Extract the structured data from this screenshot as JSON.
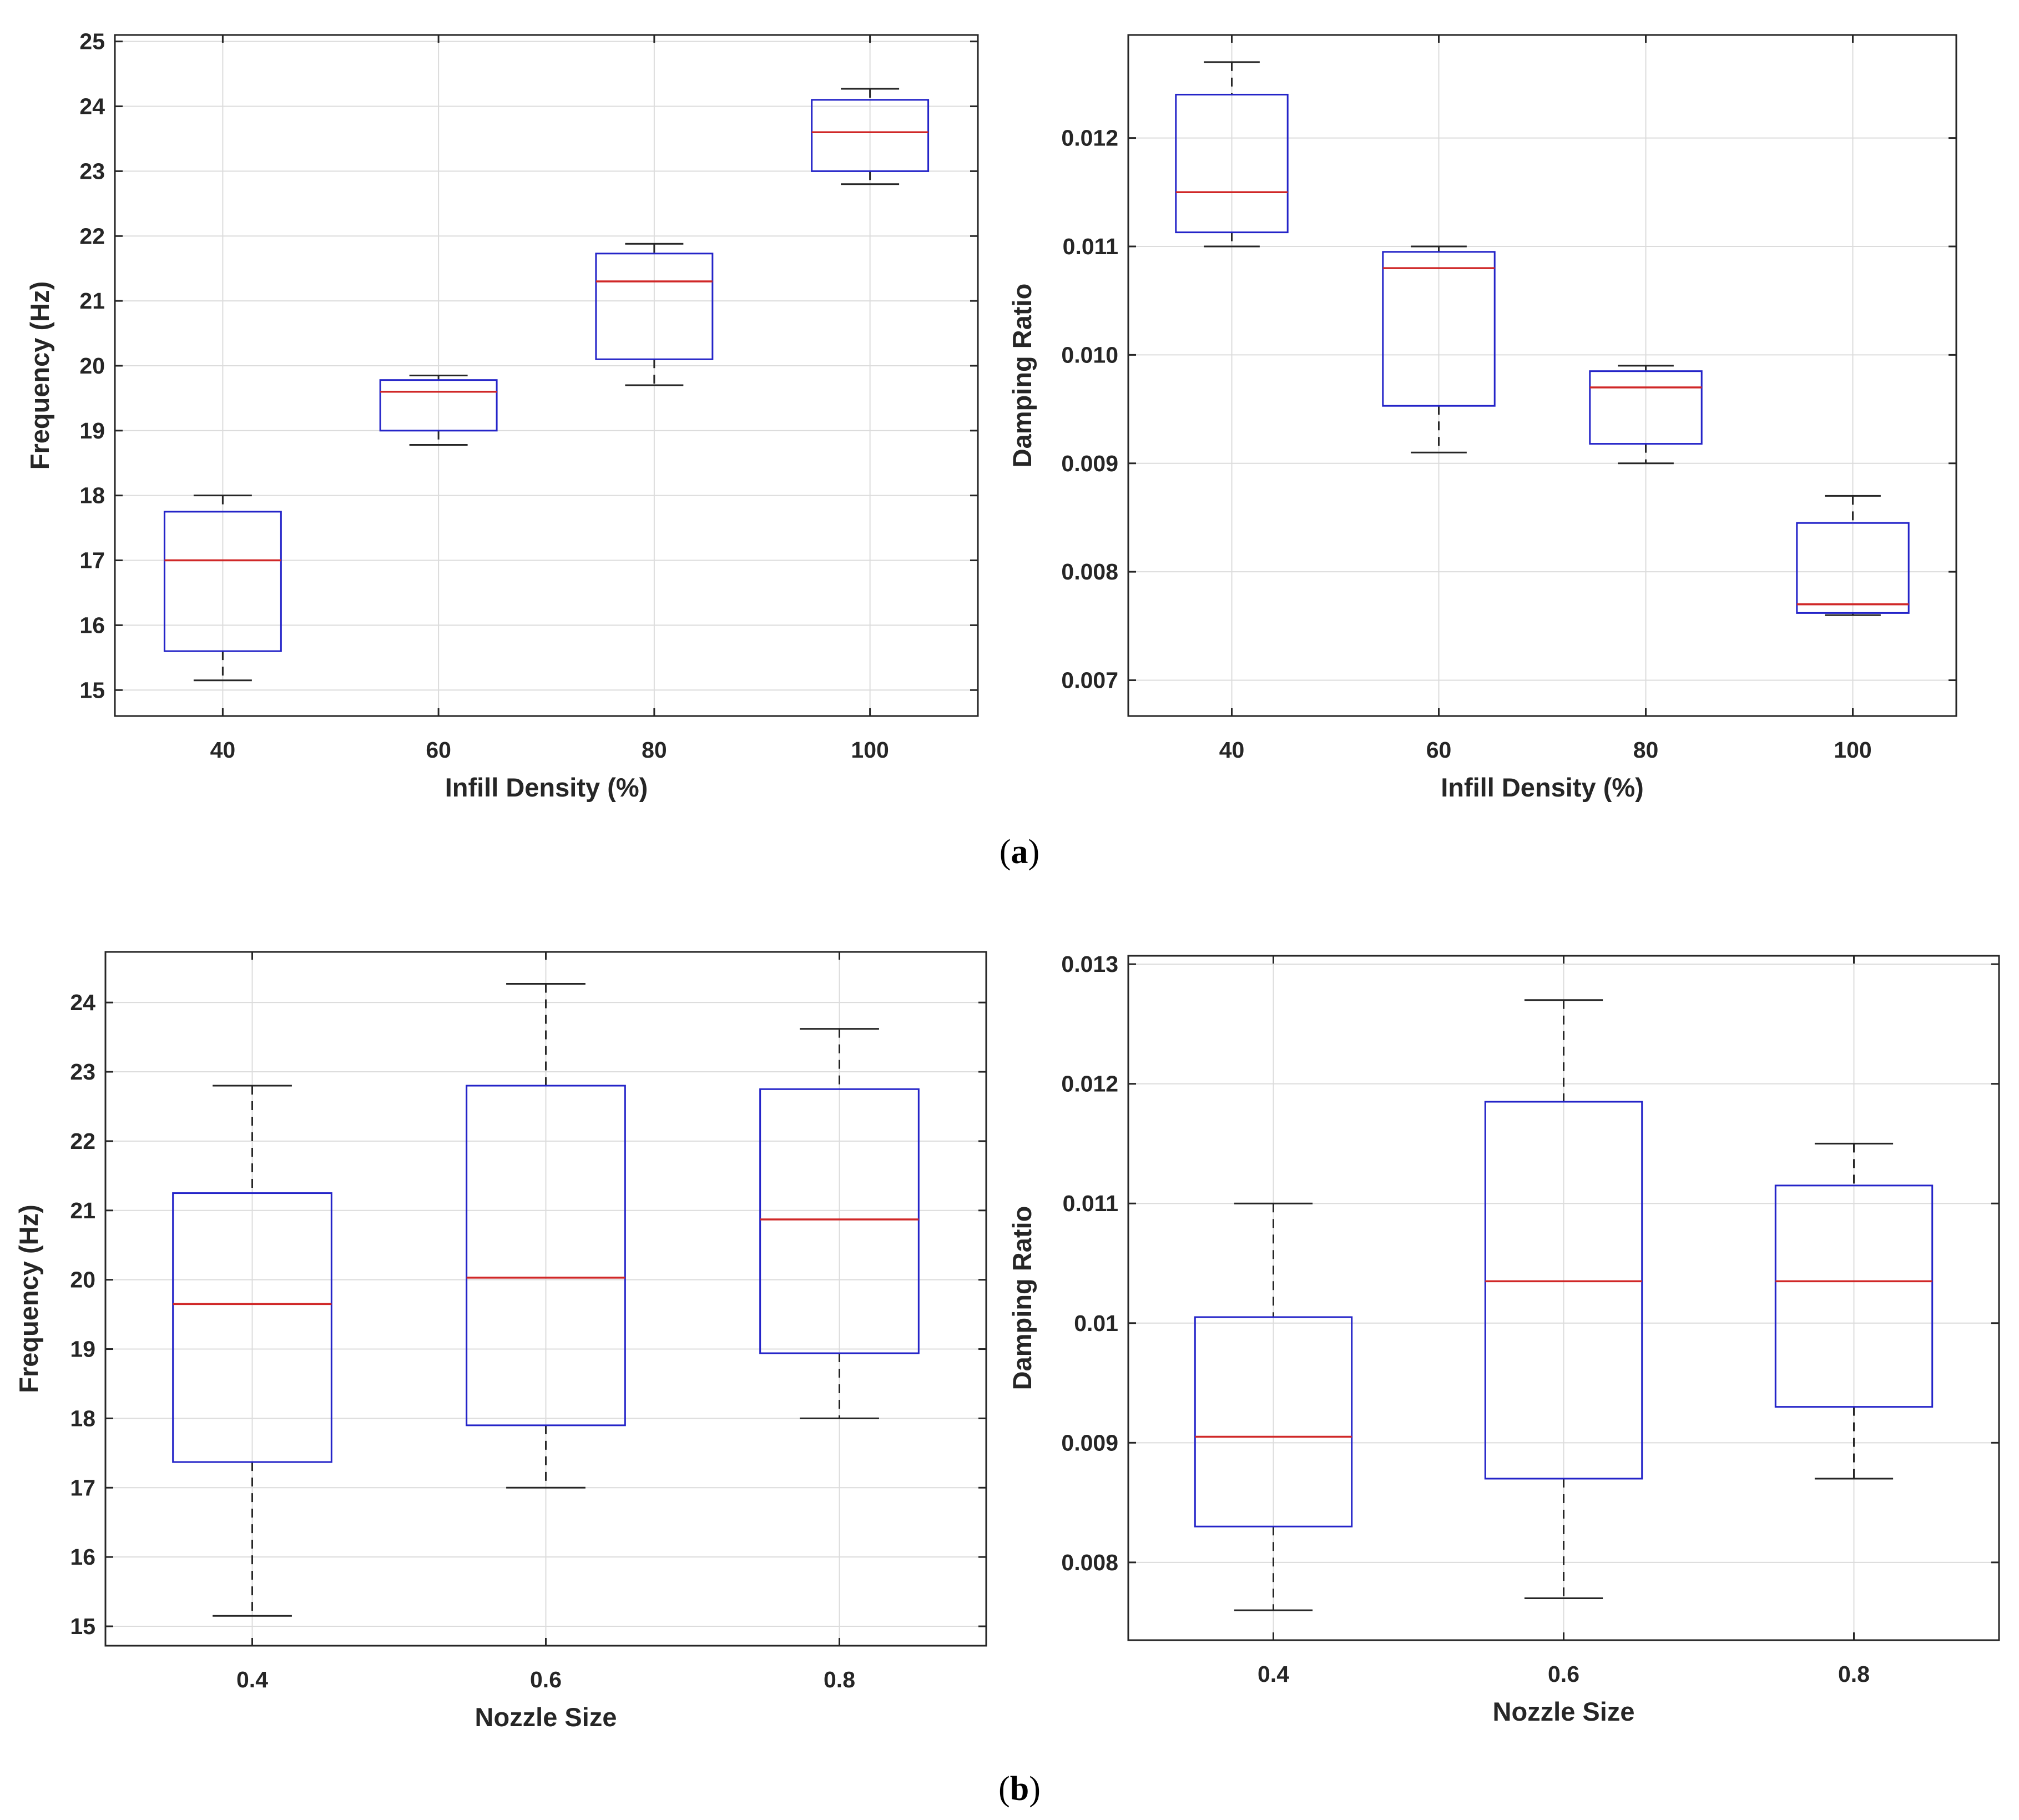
{
  "figure": {
    "panel_labels": {
      "a": "a",
      "b": "b"
    },
    "colors": {
      "box": "#2424c8",
      "median": "#d02828",
      "whisker": "#262626",
      "grid": "#dcdcdc",
      "axes": "#262626"
    }
  },
  "chart_data": [
    {
      "type": "box",
      "panel": "a",
      "title": "",
      "xlabel": "Infill Density (%)",
      "ylabel": "Frequency (Hz)",
      "categories": [
        "40",
        "60",
        "80",
        "100"
      ],
      "ylim": [
        14.6,
        25.1
      ],
      "yticks": [
        15,
        16,
        17,
        18,
        19,
        20,
        21,
        22,
        23,
        24,
        25
      ],
      "ytick_labels": [
        "15",
        "16",
        "17",
        "18",
        "19",
        "20",
        "21",
        "22",
        "23",
        "24",
        "25"
      ],
      "grid": true,
      "boxes": [
        {
          "min": 15.15,
          "q1": 15.6,
          "median": 17.0,
          "q3": 17.75,
          "max": 18.0
        },
        {
          "min": 18.78,
          "q1": 19.0,
          "median": 19.6,
          "q3": 19.78,
          "max": 19.85
        },
        {
          "min": 19.7,
          "q1": 20.1,
          "median": 21.3,
          "q3": 21.73,
          "max": 21.88
        },
        {
          "min": 22.8,
          "q1": 23.0,
          "median": 23.6,
          "q3": 24.1,
          "max": 24.27
        }
      ]
    },
    {
      "type": "box",
      "panel": "a",
      "title": "",
      "xlabel": "Infill Density (%)",
      "ylabel": "Damping Ratio",
      "categories": [
        "40",
        "60",
        "80",
        "100"
      ],
      "ylim": [
        0.00667,
        0.01295
      ],
      "yticks": [
        0.007,
        0.008,
        0.009,
        0.01,
        0.011,
        0.012
      ],
      "ytick_labels": [
        "0.007",
        "0.008",
        "0.009",
        "0.010",
        "0.011",
        "0.012"
      ],
      "grid": true,
      "boxes": [
        {
          "min": 0.011,
          "q1": 0.01113,
          "median": 0.0115,
          "q3": 0.0124,
          "max": 0.0127
        },
        {
          "min": 0.0091,
          "q1": 0.00953,
          "median": 0.0108,
          "q3": 0.01095,
          "max": 0.011
        },
        {
          "min": 0.009,
          "q1": 0.00918,
          "median": 0.0097,
          "q3": 0.00985,
          "max": 0.0099
        },
        {
          "min": 0.0076,
          "q1": 0.00762,
          "median": 0.0077,
          "q3": 0.00845,
          "max": 0.0087
        }
      ]
    },
    {
      "type": "box",
      "panel": "b",
      "title": "",
      "xlabel": "Nozzle Size",
      "ylabel": "Frequency (Hz)",
      "categories": [
        "0.4",
        "0.6",
        "0.8"
      ],
      "ylim": [
        14.72,
        24.73
      ],
      "yticks": [
        15,
        16,
        17,
        18,
        19,
        20,
        21,
        22,
        23,
        24
      ],
      "ytick_labels": [
        "15",
        "16",
        "17",
        "18",
        "19",
        "20",
        "21",
        "22",
        "23",
        "24"
      ],
      "grid": true,
      "boxes": [
        {
          "min": 15.15,
          "q1": 17.37,
          "median": 19.65,
          "q3": 21.25,
          "max": 22.8
        },
        {
          "min": 17.0,
          "q1": 17.9,
          "median": 20.03,
          "q3": 22.8,
          "max": 24.27
        },
        {
          "min": 18.0,
          "q1": 18.94,
          "median": 20.87,
          "q3": 22.75,
          "max": 23.62
        }
      ]
    },
    {
      "type": "box",
      "panel": "b",
      "title": "",
      "xlabel": "Nozzle Size",
      "ylabel": "Damping Ratio",
      "categories": [
        "0.4",
        "0.6",
        "0.8"
      ],
      "ylim": [
        0.00735,
        0.01307
      ],
      "yticks": [
        0.008,
        0.009,
        0.01,
        0.011,
        0.012,
        0.013
      ],
      "ytick_labels": [
        "0.008",
        "0.009",
        "0.01",
        "0.011",
        "0.012",
        "0.013"
      ],
      "grid": true,
      "boxes": [
        {
          "min": 0.0076,
          "q1": 0.0083,
          "median": 0.00905,
          "q3": 0.01005,
          "max": 0.011
        },
        {
          "min": 0.0077,
          "q1": 0.0087,
          "median": 0.01035,
          "q3": 0.01185,
          "max": 0.0127
        },
        {
          "min": 0.0087,
          "q1": 0.0093,
          "median": 0.01035,
          "q3": 0.01115,
          "max": 0.0115
        }
      ]
    }
  ]
}
